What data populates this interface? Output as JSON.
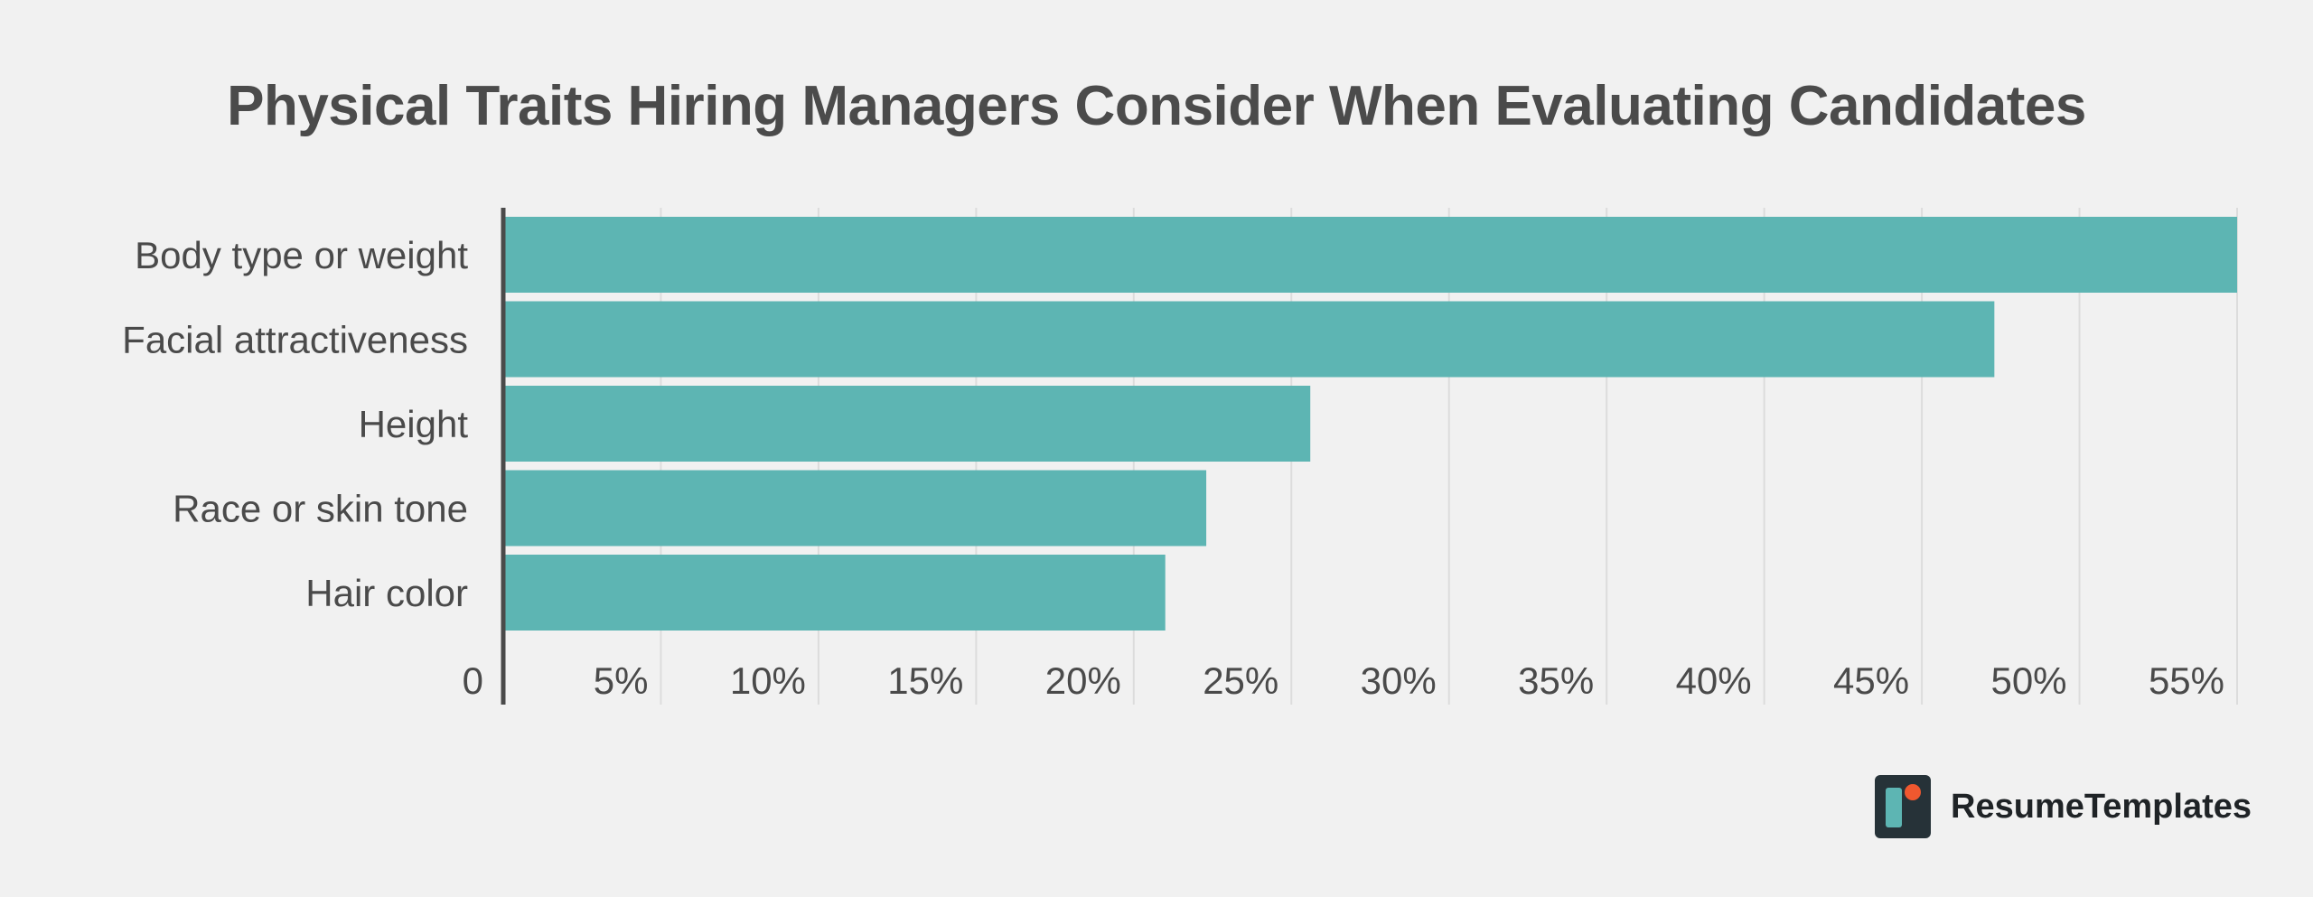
{
  "chart_data": {
    "type": "bar",
    "orientation": "horizontal",
    "title": "Physical Traits Hiring Managers Consider When Evaluating Candidates",
    "xlabel": "",
    "ylabel": "",
    "categories": [
      "Body type or weight",
      "Facial attractiveness",
      "Height",
      "Race or skin tone",
      "Hair color"
    ],
    "values": [
      55,
      47.3,
      25.6,
      22.3,
      21
    ],
    "xlim": [
      0,
      55
    ],
    "x_ticks": [
      0,
      5,
      10,
      15,
      20,
      25,
      30,
      35,
      40,
      45,
      50,
      55
    ],
    "x_tick_labels": [
      "0",
      "5%",
      "10%",
      "15%",
      "20%",
      "25%",
      "30%",
      "35%",
      "40%",
      "45%",
      "50%",
      "55%"
    ],
    "grid": true,
    "legend": "none",
    "bar_color": "#5db5b3",
    "grid_color": "#dcdcdc",
    "axis_color": "#4a4a4a"
  },
  "brand": {
    "name": "ResumeTemplates",
    "logo_icon": "resumetemplates-logo-icon",
    "logo_colors": [
      "#263238",
      "#5db5b3",
      "#f0582f"
    ]
  }
}
